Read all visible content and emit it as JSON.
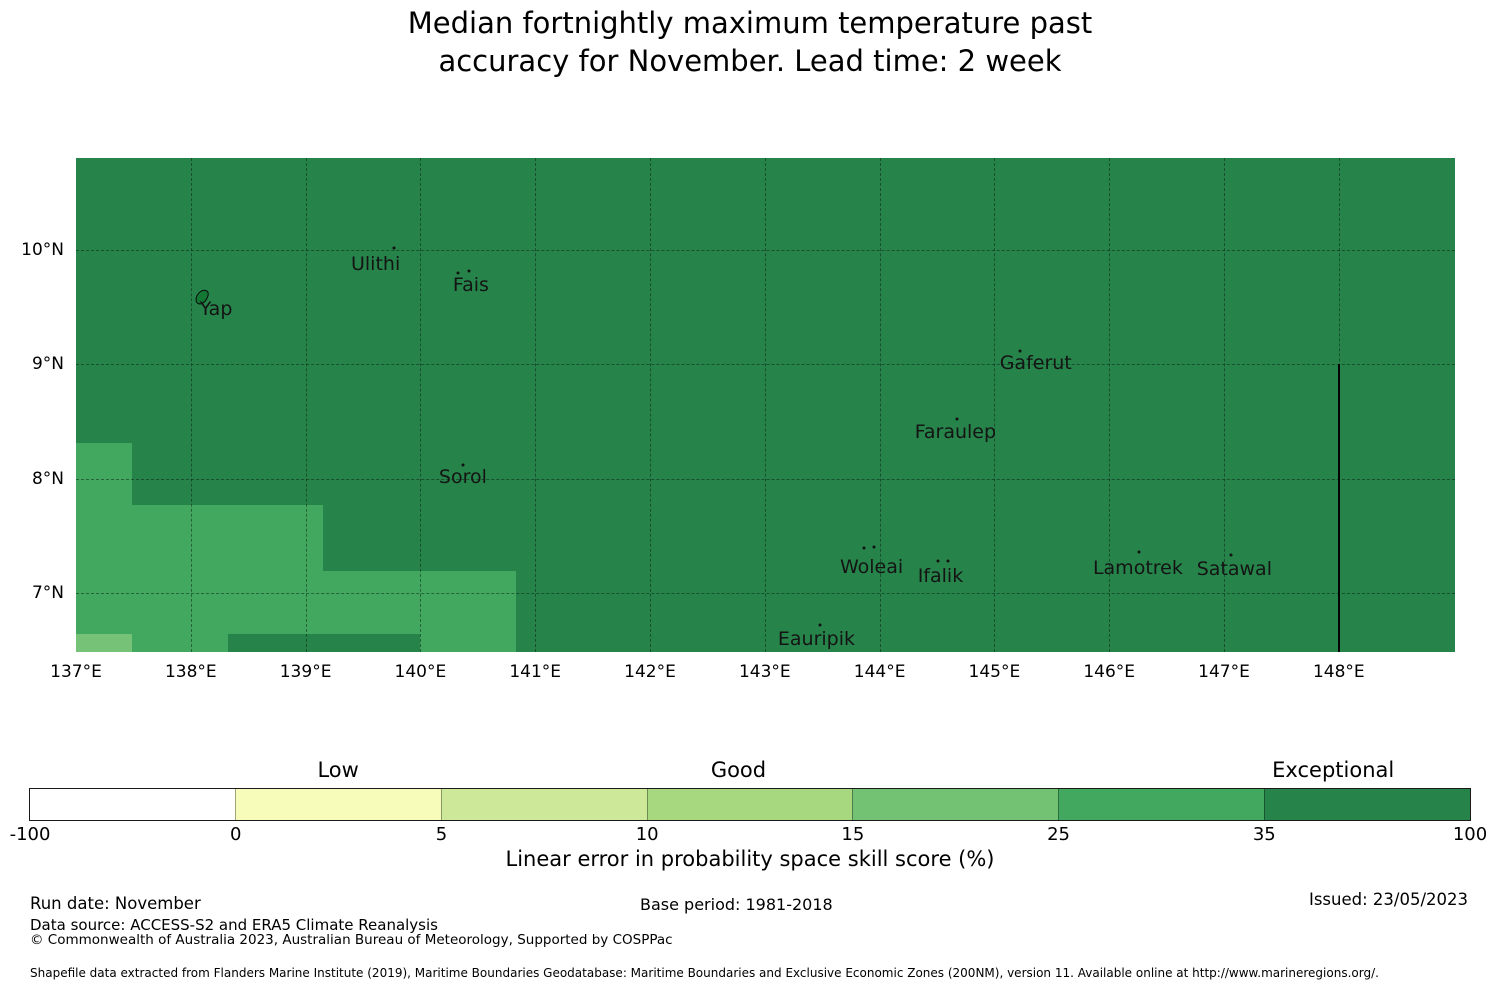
{
  "title": "Median fortnightly maximum temperature past\naccuracy for November. Lead time: 2 week",
  "footer": {
    "run_date": "Run date: November",
    "base_period": "Base period: 1981-2018",
    "issued": "Issued: 23/05/2023",
    "data_source": "Data source: ACCESS-S2 and ERA5 Climate Reanalysis",
    "copyright": "© Commonwealth of Australia 2023, Australian Bureau of Meteorology, Supported by COSPPac",
    "shapefile_note": "Shapefile data extracted from Flanders Marine Institute (2019), Maritime Boundaries Geodatabase: Maritime Boundaries and Exclusive Economic Zones (200NM), version 11. Available online at http://www.marineregions.org/."
  },
  "chart_data": {
    "type": "heatmap",
    "title": "Median fortnightly maximum temperature past accuracy for November. Lead time: 2 week",
    "legend_position": "bottom",
    "grid": "on",
    "map": {
      "lon_range": [
        137.0,
        149.012
      ],
      "lat_range": [
        6.483,
        10.805
      ],
      "grid_lons": [
        138,
        139,
        140,
        141,
        142,
        143,
        144,
        145,
        146,
        147,
        148
      ],
      "grid_lats": [
        7,
        8,
        9,
        10
      ],
      "lon_ticks": [
        {
          "lon": 137,
          "label": "137°E"
        },
        {
          "lon": 138,
          "label": "138°E"
        },
        {
          "lon": 139,
          "label": "139°E"
        },
        {
          "lon": 140,
          "label": "140°E"
        },
        {
          "lon": 141,
          "label": "141°E"
        },
        {
          "lon": 142,
          "label": "142°E"
        },
        {
          "lon": 143,
          "label": "143°E"
        },
        {
          "lon": 144,
          "label": "144°E"
        },
        {
          "lon": 145,
          "label": "145°E"
        },
        {
          "lon": 146,
          "label": "146°E"
        },
        {
          "lon": 147,
          "label": "147°E"
        },
        {
          "lon": 148,
          "label": "148°E"
        }
      ],
      "lat_ticks": [
        {
          "lat": 10,
          "label": "10°N"
        },
        {
          "lat": 9,
          "label": "9°N"
        },
        {
          "lat": 8,
          "label": "8°N"
        },
        {
          "lat": 7,
          "label": "7°N"
        }
      ],
      "background_bin": "35 to 100",
      "background_color": "#26834a",
      "regions": [
        {
          "bin": "25 to 35",
          "color": "#42a85f",
          "lon": [
            137.0,
            137.488
          ],
          "lat": [
            6.483,
            8.312
          ]
        },
        {
          "bin": "25 to 35",
          "color": "#42a85f",
          "lon": [
            137.488,
            139.152
          ],
          "lat": [
            6.483,
            7.769
          ]
        },
        {
          "bin": "25 to 35",
          "color": "#42a85f",
          "lon": [
            139.152,
            140.833
          ],
          "lat": [
            6.483,
            7.192
          ]
        },
        {
          "bin": "15 to 25",
          "color": "#76c277",
          "lon": [
            137.0,
            137.488
          ],
          "lat": [
            6.483,
            6.641
          ]
        },
        {
          "bin": "35 to 100",
          "color": "#26834a",
          "lon": [
            138.324,
            139.997
          ],
          "lat": [
            6.483,
            6.641
          ]
        }
      ],
      "eez_boundary": {
        "lon": 148.0,
        "lat_from": 6.483,
        "lat_to": 9.0,
        "color": "#050505"
      },
      "islands": [
        {
          "name": "Yap",
          "label": [
            138.22,
            9.48
          ],
          "dots": [
            [
              138.1,
              9.59
            ]
          ],
          "islet": true
        },
        {
          "name": "Ulithi",
          "label": [
            139.61,
            9.88
          ],
          "dots": [
            [
              139.77,
              10.02
            ]
          ]
        },
        {
          "name": "Fais",
          "label": [
            140.44,
            9.69
          ],
          "dots": [
            [
              140.33,
              9.8
            ],
            [
              140.42,
              9.82
            ]
          ]
        },
        {
          "name": "Sorol",
          "label": [
            140.37,
            8.01
          ],
          "dots": [
            [
              140.37,
              8.12
            ]
          ]
        },
        {
          "name": "Gaferut",
          "label": [
            145.36,
            9.01
          ],
          "dots": [
            [
              145.22,
              9.12
            ]
          ]
        },
        {
          "name": "Faraulep",
          "label": [
            144.66,
            8.41
          ],
          "dots": [
            [
              144.67,
              8.52
            ]
          ]
        },
        {
          "name": "Woleai",
          "label": [
            143.93,
            7.23
          ],
          "dots": [
            [
              143.86,
              7.39
            ],
            [
              143.95,
              7.4
            ]
          ]
        },
        {
          "name": "Ifalik",
          "label": [
            144.53,
            7.15
          ],
          "dots": [
            [
              144.51,
              7.28
            ],
            [
              144.6,
              7.28
            ]
          ]
        },
        {
          "name": "Lamotrek",
          "label": [
            146.25,
            7.22
          ],
          "dots": [
            [
              146.26,
              7.36
            ]
          ]
        },
        {
          "name": "Satawal",
          "label": [
            147.09,
            7.21
          ],
          "dots": [
            [
              147.06,
              7.33
            ]
          ]
        },
        {
          "name": "Eauripik",
          "label": [
            143.45,
            6.6
          ],
          "dots": [
            [
              143.48,
              6.72
            ]
          ]
        }
      ]
    },
    "colorbar": {
      "label": "Linear error in probability space skill score (%)",
      "bins": [
        {
          "from": -100,
          "to": 0,
          "color": "#ffffff"
        },
        {
          "from": 0,
          "to": 5,
          "color": "#f8fcba"
        },
        {
          "from": 5,
          "to": 10,
          "color": "#cde899"
        },
        {
          "from": 10,
          "to": 15,
          "color": "#a7d77f"
        },
        {
          "from": 15,
          "to": 25,
          "color": "#73c173"
        },
        {
          "from": 25,
          "to": 35,
          "color": "#42a85f"
        },
        {
          "from": 35,
          "to": 100,
          "color": "#26834a"
        }
      ],
      "boundary_labels": [
        "-100",
        "0",
        "5",
        "10",
        "15",
        "25",
        "35",
        "100"
      ],
      "categories": [
        {
          "label": "Low",
          "position": 0.214
        },
        {
          "label": "Good",
          "position": 0.492
        },
        {
          "label": "Exceptional",
          "position": 0.905
        }
      ]
    }
  }
}
